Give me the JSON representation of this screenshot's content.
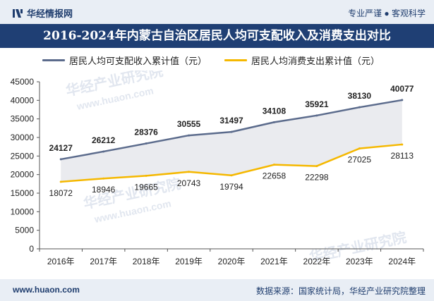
{
  "header": {
    "brand": "华经情报网",
    "tagline": "专业严谨 ● 客观科学"
  },
  "footer": {
    "site": "www.huaon.com",
    "source": "数据来源：国家统计局，华经产业研究院整理"
  },
  "watermarks": [
    "华经产业研究院",
    "www.huaon.com"
  ],
  "colors": {
    "series1": "#5b6b8c",
    "series2": "#f5b800",
    "band": "#e6e8ec",
    "title_bg": "#1f3f74"
  },
  "chart_data": {
    "type": "line",
    "title": "2016-2024年内蒙古自治区居民人均可支配收入及消费支出对比",
    "categories": [
      "2016年",
      "2017年",
      "2018年",
      "2019年",
      "2020年",
      "2021年",
      "2022年",
      "2023年",
      "2024年"
    ],
    "series": [
      {
        "name": "居民人均可支配收入累计值（元）",
        "values": [
          24127,
          26212,
          28376,
          30555,
          31497,
          34108,
          35921,
          38130,
          40077
        ]
      },
      {
        "name": "居民人均消费支出累计值（元）",
        "values": [
          18072,
          18946,
          19665,
          20743,
          19794,
          22658,
          22298,
          27025,
          28113
        ]
      }
    ],
    "ylim": [
      0,
      45000
    ],
    "yticks": [
      0,
      5000,
      10000,
      15000,
      20000,
      25000,
      30000,
      35000,
      40000,
      45000
    ],
    "grid": false,
    "legend_position": "top"
  }
}
